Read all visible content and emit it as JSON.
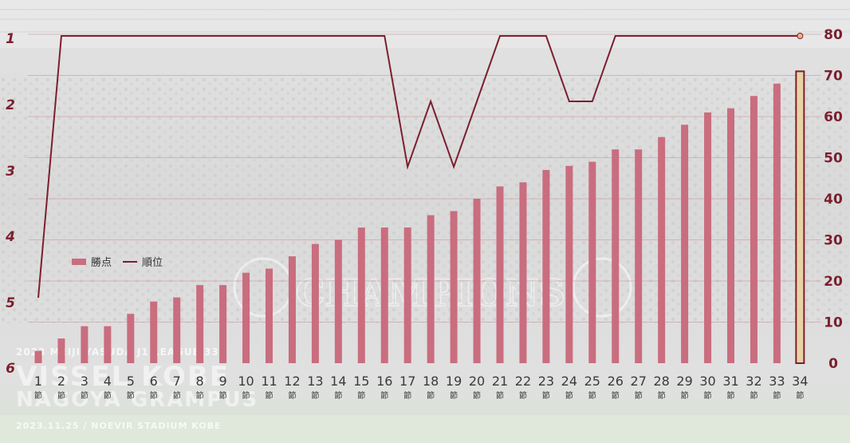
{
  "background": {
    "banner_lines": {
      "league": "2023 MEIJI YASUDA J1 LEAGUE 33",
      "home": "VISSEL KOBE",
      "away": "NAGOYA GRAMPUS",
      "date_venue": "2023.11.25 / NOEVIR STADIUM KOBE"
    },
    "watermark": "CHAMPIONS"
  },
  "legend": {
    "bar_label": "勝点",
    "line_label": "順位"
  },
  "colors": {
    "bar": "#c96d7f",
    "line": "#7b1f2e",
    "highlight_fill": "#e9d3a3",
    "highlight_stroke": "#7b1f2e"
  },
  "chart_data": {
    "type": "bar",
    "categories": [
      "1",
      "2",
      "3",
      "4",
      "5",
      "6",
      "7",
      "8",
      "9",
      "10",
      "11",
      "12",
      "13",
      "14",
      "15",
      "16",
      "17",
      "18",
      "19",
      "20",
      "21",
      "22",
      "23",
      "24",
      "25",
      "26",
      "27",
      "28",
      "29",
      "30",
      "31",
      "32",
      "33",
      "34"
    ],
    "category_suffix": "節",
    "series": [
      {
        "name": "勝点",
        "type": "bar",
        "axis": "right",
        "values": [
          3,
          6,
          9,
          9,
          12,
          15,
          16,
          19,
          19,
          22,
          23,
          26,
          29,
          30,
          33,
          33,
          33,
          36,
          37,
          40,
          43,
          44,
          47,
          48,
          49,
          52,
          52,
          55,
          58,
          61,
          62,
          65,
          68,
          71
        ]
      },
      {
        "name": "順位",
        "type": "line",
        "axis": "left",
        "values": [
          5,
          1,
          1,
          1,
          1,
          1,
          1,
          1,
          1,
          1,
          1,
          1,
          1,
          1,
          1,
          1,
          3,
          2,
          3,
          2,
          1,
          1,
          1,
          2,
          2,
          1,
          1,
          1,
          1,
          1,
          1,
          1,
          1,
          1
        ]
      }
    ],
    "highlighted_category": "34",
    "y_right": {
      "lim": [
        0,
        80
      ],
      "ticks": [
        0,
        10,
        20,
        30,
        40,
        50,
        60,
        70,
        80
      ]
    },
    "y_left": {
      "lim": [
        1,
        6
      ],
      "inverted": true,
      "ticks": [
        1,
        2,
        3,
        4,
        5,
        6
      ]
    },
    "grid": true,
    "legend_position": "middle-left"
  }
}
